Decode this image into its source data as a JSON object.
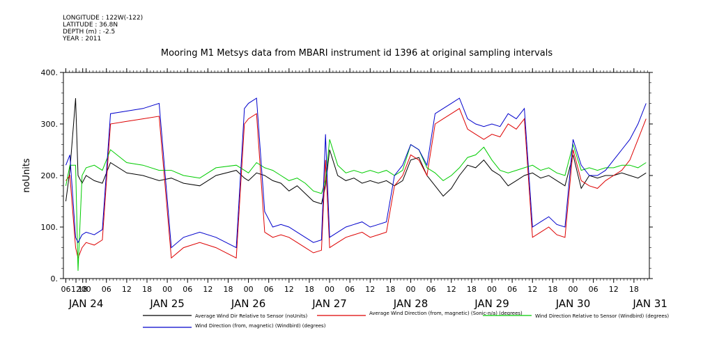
{
  "header": {
    "longitude": "LONGITUDE : 122W(-122)",
    "latitude": "LATITUDE : 36.8N",
    "depth": "DEPTH (m) : -2.5",
    "year": "YEAR : 2011"
  },
  "chart_data": {
    "type": "line",
    "title": "Mooring M1 Metsys data from MBARI instrument id 1396 at original sampling intervals",
    "ylabel": "noUnits",
    "ylim": [
      0,
      400
    ],
    "yticks": [
      0,
      100,
      200,
      300,
      400
    ],
    "ytick_labels": [
      "0.",
      "100.",
      "200.",
      "300.",
      "400."
    ],
    "x_unit": "day of Jan 2011",
    "xlim": [
      23.72,
      30.94
    ],
    "hour_ticks": [
      {
        "t": 23.75,
        "label": "06"
      },
      {
        "t": 23.875,
        "label": "12"
      },
      {
        "t": 23.958,
        "label": "18"
      },
      {
        "t": 24.0,
        "label": "00"
      },
      {
        "t": 24.25,
        "label": "06"
      },
      {
        "t": 24.5,
        "label": "12"
      },
      {
        "t": 24.75,
        "label": "18"
      },
      {
        "t": 25.0,
        "label": "00"
      },
      {
        "t": 25.25,
        "label": "06"
      },
      {
        "t": 25.5,
        "label": "12"
      },
      {
        "t": 25.75,
        "label": "18"
      },
      {
        "t": 26.0,
        "label": "00"
      },
      {
        "t": 26.25,
        "label": "06"
      },
      {
        "t": 26.5,
        "label": "12"
      },
      {
        "t": 26.75,
        "label": "18"
      },
      {
        "t": 27.0,
        "label": "00"
      },
      {
        "t": 27.25,
        "label": "06"
      },
      {
        "t": 27.5,
        "label": "12"
      },
      {
        "t": 27.75,
        "label": "18"
      },
      {
        "t": 28.0,
        "label": "00"
      },
      {
        "t": 28.25,
        "label": "06"
      },
      {
        "t": 28.5,
        "label": "12"
      },
      {
        "t": 28.75,
        "label": "18"
      },
      {
        "t": 29.0,
        "label": "00"
      },
      {
        "t": 29.25,
        "label": "06"
      },
      {
        "t": 29.5,
        "label": "12"
      },
      {
        "t": 29.75,
        "label": "18"
      },
      {
        "t": 30.0,
        "label": "00"
      },
      {
        "t": 30.25,
        "label": "06"
      },
      {
        "t": 30.5,
        "label": "12"
      },
      {
        "t": 30.75,
        "label": "18"
      }
    ],
    "day_labels": [
      {
        "t": 24.0,
        "label": "JAN 24"
      },
      {
        "t": 25.0,
        "label": "JAN 25"
      },
      {
        "t": 26.0,
        "label": "JAN 26"
      },
      {
        "t": 27.0,
        "label": "JAN 27"
      },
      {
        "t": 28.0,
        "label": "JAN 28"
      },
      {
        "t": 29.0,
        "label": "JAN 29"
      },
      {
        "t": 30.0,
        "label": "JAN 30"
      },
      {
        "t": 30.95,
        "label": "JAN 31"
      }
    ],
    "series": [
      {
        "name": "Average Wind Dir Relative to Sensor (noUnits)",
        "color": "#000000",
        "x": [
          23.75,
          23.8,
          23.87,
          23.9,
          23.95,
          24.0,
          24.1,
          24.2,
          24.3,
          24.5,
          24.7,
          24.9,
          25.05,
          25.2,
          25.4,
          25.6,
          25.85,
          25.95,
          26.0,
          26.1,
          26.2,
          26.3,
          26.4,
          26.5,
          26.6,
          26.7,
          26.8,
          26.9,
          26.95,
          27.0,
          27.1,
          27.2,
          27.3,
          27.4,
          27.5,
          27.6,
          27.7,
          27.8,
          27.9,
          28.0,
          28.1,
          28.2,
          28.3,
          28.4,
          28.5,
          28.6,
          28.7,
          28.8,
          28.9,
          29.0,
          29.1,
          29.2,
          29.3,
          29.4,
          29.5,
          29.6,
          29.7,
          29.8,
          29.9,
          30.0,
          30.1,
          30.2,
          30.3,
          30.4,
          30.5,
          30.6,
          30.7,
          30.8,
          30.9
        ],
        "y": [
          150,
          210,
          350,
          200,
          185,
          200,
          190,
          185,
          225,
          205,
          200,
          190,
          195,
          185,
          180,
          200,
          210,
          195,
          190,
          205,
          200,
          190,
          185,
          170,
          180,
          165,
          150,
          145,
          180,
          250,
          200,
          190,
          195,
          185,
          190,
          185,
          190,
          180,
          190,
          230,
          235,
          200,
          180,
          160,
          175,
          200,
          220,
          215,
          230,
          210,
          200,
          180,
          190,
          200,
          205,
          195,
          200,
          190,
          180,
          240,
          175,
          200,
          195,
          200,
          200,
          205,
          200,
          195,
          205
        ]
      },
      {
        "name": "Average Wind Direction (from, magnetic) (Sonic-n/a) (degrees)",
        "color": "#dd0000",
        "x": [
          23.75,
          23.8,
          23.87,
          23.9,
          23.95,
          24.0,
          24.1,
          24.2,
          24.3,
          24.5,
          24.7,
          24.9,
          25.05,
          25.2,
          25.4,
          25.6,
          25.85,
          25.95,
          26.0,
          26.1,
          26.2,
          26.3,
          26.4,
          26.5,
          26.6,
          26.7,
          26.8,
          26.9,
          26.95,
          27.0,
          27.1,
          27.2,
          27.3,
          27.4,
          27.5,
          27.6,
          27.7,
          27.8,
          27.9,
          28.0,
          28.1,
          28.2,
          28.3,
          28.4,
          28.5,
          28.6,
          28.7,
          28.8,
          28.9,
          29.0,
          29.1,
          29.2,
          29.3,
          29.4,
          29.5,
          29.6,
          29.7,
          29.8,
          29.9,
          30.0,
          30.1,
          30.2,
          30.3,
          30.4,
          30.5,
          30.6,
          30.7,
          30.8,
          30.9
        ],
        "y": [
          190,
          200,
          60,
          40,
          60,
          70,
          65,
          75,
          300,
          305,
          310,
          315,
          40,
          60,
          70,
          60,
          40,
          300,
          310,
          320,
          90,
          80,
          85,
          80,
          70,
          60,
          50,
          55,
          230,
          60,
          70,
          80,
          85,
          90,
          80,
          85,
          90,
          180,
          200,
          240,
          230,
          200,
          300,
          310,
          320,
          330,
          290,
          280,
          270,
          280,
          275,
          300,
          290,
          310,
          80,
          90,
          100,
          85,
          80,
          250,
          190,
          180,
          175,
          190,
          200,
          210,
          230,
          270,
          310
        ]
      },
      {
        "name": "Wind Direction Relative to Sensor (Windbird) (degrees)",
        "color": "#00cc00",
        "x": [
          23.75,
          23.8,
          23.87,
          23.9,
          23.95,
          24.0,
          24.1,
          24.2,
          24.3,
          24.5,
          24.7,
          24.9,
          25.05,
          25.2,
          25.4,
          25.6,
          25.85,
          25.95,
          26.0,
          26.1,
          26.2,
          26.3,
          26.4,
          26.5,
          26.6,
          26.7,
          26.8,
          26.9,
          26.95,
          27.0,
          27.1,
          27.2,
          27.3,
          27.4,
          27.5,
          27.6,
          27.7,
          27.8,
          27.9,
          28.0,
          28.1,
          28.2,
          28.3,
          28.4,
          28.5,
          28.6,
          28.7,
          28.8,
          28.9,
          29.0,
          29.1,
          29.2,
          29.3,
          29.4,
          29.5,
          29.6,
          29.7,
          29.8,
          29.9,
          30.0,
          30.1,
          30.2,
          30.3,
          30.4,
          30.5,
          30.6,
          30.7,
          30.8,
          30.9
        ],
        "y": [
          180,
          220,
          220,
          15,
          200,
          215,
          220,
          210,
          250,
          225,
          220,
          210,
          210,
          200,
          195,
          215,
          220,
          210,
          205,
          225,
          215,
          210,
          200,
          190,
          195,
          185,
          170,
          165,
          190,
          270,
          220,
          205,
          210,
          205,
          210,
          205,
          210,
          200,
          210,
          260,
          250,
          215,
          205,
          190,
          200,
          215,
          235,
          240,
          255,
          230,
          210,
          205,
          210,
          215,
          220,
          210,
          215,
          205,
          200,
          260,
          210,
          215,
          210,
          215,
          215,
          220,
          220,
          215,
          225
        ]
      },
      {
        "name": "Wind Direction (from, magnetic) (Windbird) (degrees)",
        "color": "#0000cc",
        "x": [
          23.75,
          23.8,
          23.87,
          23.9,
          23.95,
          24.0,
          24.1,
          24.2,
          24.3,
          24.5,
          24.7,
          24.9,
          25.05,
          25.2,
          25.4,
          25.6,
          25.85,
          25.95,
          26.0,
          26.1,
          26.2,
          26.3,
          26.4,
          26.5,
          26.6,
          26.7,
          26.8,
          26.9,
          26.95,
          27.0,
          27.1,
          27.2,
          27.3,
          27.4,
          27.5,
          27.6,
          27.7,
          27.8,
          27.9,
          28.0,
          28.1,
          28.2,
          28.3,
          28.4,
          28.5,
          28.6,
          28.7,
          28.8,
          28.9,
          29.0,
          29.1,
          29.2,
          29.3,
          29.4,
          29.5,
          29.6,
          29.7,
          29.8,
          29.9,
          30.0,
          30.1,
          30.2,
          30.3,
          30.4,
          30.5,
          30.6,
          30.7,
          30.8,
          30.9
        ],
        "y": [
          220,
          240,
          80,
          70,
          85,
          90,
          85,
          95,
          320,
          325,
          330,
          340,
          60,
          80,
          90,
          80,
          60,
          330,
          340,
          350,
          130,
          100,
          105,
          100,
          90,
          80,
          70,
          75,
          280,
          80,
          90,
          100,
          105,
          110,
          100,
          105,
          110,
          200,
          220,
          260,
          250,
          220,
          320,
          330,
          340,
          350,
          310,
          300,
          295,
          300,
          295,
          320,
          310,
          330,
          100,
          110,
          120,
          105,
          100,
          270,
          220,
          200,
          200,
          210,
          230,
          250,
          270,
          300,
          340
        ]
      }
    ],
    "legend": "bottom"
  }
}
